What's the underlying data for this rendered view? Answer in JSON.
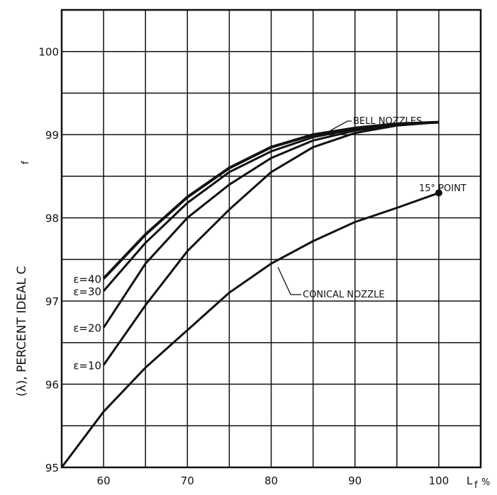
{
  "chart_data": {
    "type": "line",
    "title": "",
    "xlabel": "L",
    "xlabel_sub": "f",
    "xlabel_unit": "%",
    "ylabel": "(λ), PERCENT IDEAL C",
    "ylabel_sub": "f",
    "xlim": [
      55,
      105
    ],
    "ylim": [
      95,
      100.5
    ],
    "grid": true,
    "x_ticks": [
      60,
      70,
      80,
      90,
      100
    ],
    "x_tick_labels": [
      "60",
      "70",
      "80",
      "90",
      "100"
    ],
    "y_ticks": [
      95,
      96,
      97,
      98,
      99,
      100
    ],
    "y_tick_labels": [
      "95",
      "96",
      "97",
      "98",
      "99",
      "100"
    ],
    "series": [
      {
        "name": "ε=40",
        "label": "ε=40",
        "x": [
          60,
          65,
          70,
          75,
          80,
          85,
          90,
          95,
          100
        ],
        "y": [
          97.27,
          97.8,
          98.25,
          98.6,
          98.85,
          99.0,
          99.08,
          99.13,
          99.15
        ]
      },
      {
        "name": "ε=30",
        "label": "ε=30",
        "x": [
          60,
          65,
          70,
          75,
          80,
          85,
          90,
          95,
          100
        ],
        "y": [
          97.12,
          97.7,
          98.18,
          98.55,
          98.8,
          98.97,
          99.07,
          99.13,
          99.15
        ]
      },
      {
        "name": "ε=20",
        "label": "ε=20",
        "x": [
          60,
          65,
          70,
          75,
          80,
          85,
          90,
          95,
          100
        ],
        "y": [
          96.68,
          97.45,
          98.0,
          98.4,
          98.72,
          98.93,
          99.05,
          99.12,
          99.15
        ]
      },
      {
        "name": "ε=10",
        "label": "ε=10",
        "x": [
          60,
          65,
          70,
          75,
          80,
          85,
          90,
          95,
          100
        ],
        "y": [
          96.23,
          96.95,
          97.6,
          98.1,
          98.55,
          98.85,
          99.02,
          99.11,
          99.15
        ]
      },
      {
        "name": "Conical nozzle",
        "x": [
          55,
          60,
          65,
          70,
          75,
          80,
          85,
          90,
          95,
          100
        ],
        "y": [
          95.0,
          95.67,
          96.2,
          96.65,
          97.1,
          97.45,
          97.72,
          97.95,
          98.12,
          98.3
        ]
      }
    ],
    "annotations": [
      {
        "text": "BELL NOZZLES",
        "x": 86.5,
        "y": 99.05
      },
      {
        "text": "CONICAL NOZZLE",
        "x": 81,
        "y": 97.45
      },
      {
        "text": "15° POINT",
        "x": 100,
        "y": 98.3
      }
    ]
  }
}
